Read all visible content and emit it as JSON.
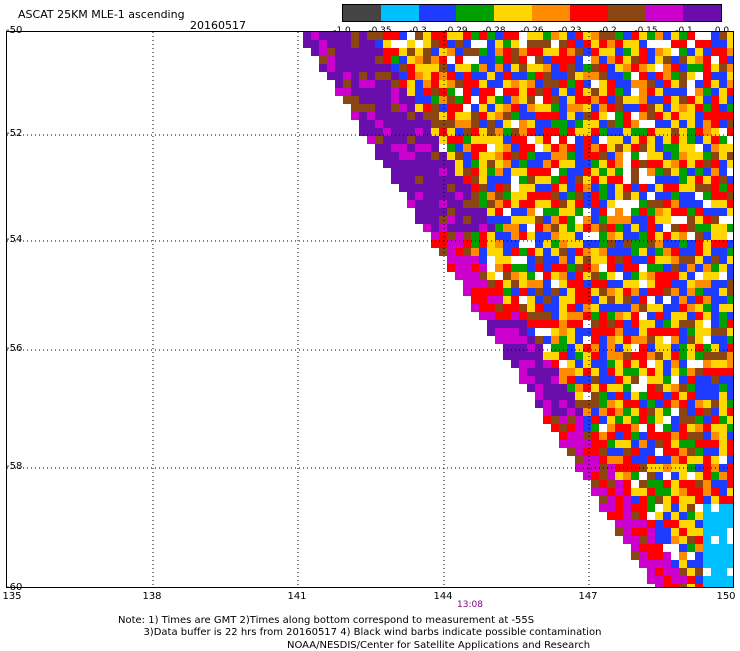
{
  "header": {
    "title": "ASCAT 25KM MLE-1 ascending",
    "date": "20160517"
  },
  "colorbar": {
    "colors": [
      "#444444",
      "#00bfff",
      "#1e3cff",
      "#00a000",
      "#ffd700",
      "#ff8c00",
      "#ff0000",
      "#8b4513",
      "#cc00cc",
      "#6a0dad"
    ],
    "labels": [
      "-1.0",
      "-0.35",
      "-0.3",
      "-0.29",
      "-0.28",
      "-0.26",
      "-0.23",
      "-0.2",
      "-0.15",
      "-0.1",
      "0.0"
    ]
  },
  "axes": {
    "lat_labels": [
      "-50",
      "-52",
      "-54",
      "-56",
      "-58",
      "-60"
    ],
    "lon_labels": [
      "135",
      "138",
      "141",
      "144",
      "147",
      "150"
    ],
    "lat_range": [
      -60,
      -50
    ],
    "lon_range": [
      135,
      150
    ]
  },
  "pass_time": "13:08",
  "footer": {
    "note_line1": "Note: 1) Times are GMT 2)Times along bottom correspond to measurement at -55S",
    "note_line2": "3)Data buffer is 22 hrs from 20160517 4) Black wind barbs indicate possible contamination",
    "agency": "NOAA/NESDIS/Center for Satellite Applications and Research"
  }
}
